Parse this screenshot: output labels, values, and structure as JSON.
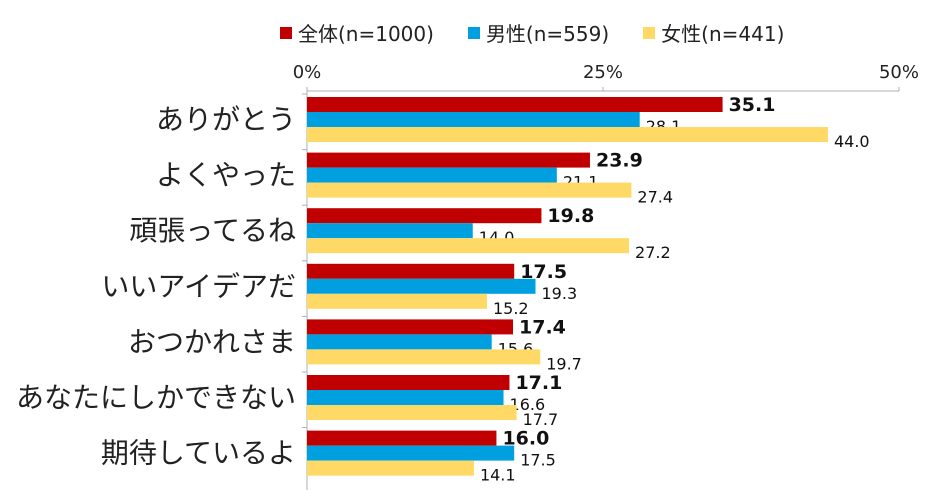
{
  "chart_data": {
    "type": "bar",
    "orientation": "horizontal",
    "categories": [
      "ありがとう",
      "よくやった",
      "頑張ってるね",
      "いいアイデアだ",
      "おつかれさま",
      "あなたにしかできない",
      "期待しているよ"
    ],
    "series": [
      {
        "name": "全体(n=1000)",
        "color": "#C00000",
        "values": [
          35.1,
          23.9,
          19.8,
          17.5,
          17.4,
          17.1,
          16.0
        ]
      },
      {
        "name": "男性(n=559)",
        "color": "#00A0E0",
        "values": [
          28.1,
          21.1,
          14.0,
          19.3,
          15.6,
          16.6,
          17.5
        ]
      },
      {
        "name": "女性(n=441)",
        "color": "#FFD966",
        "values": [
          44.0,
          27.4,
          27.2,
          15.2,
          19.7,
          17.7,
          14.1
        ]
      }
    ],
    "xaxis_ticks": [
      "0%",
      "25%",
      "50%"
    ],
    "xlim": [
      0,
      50
    ],
    "legend_position": "top",
    "grid": false
  }
}
